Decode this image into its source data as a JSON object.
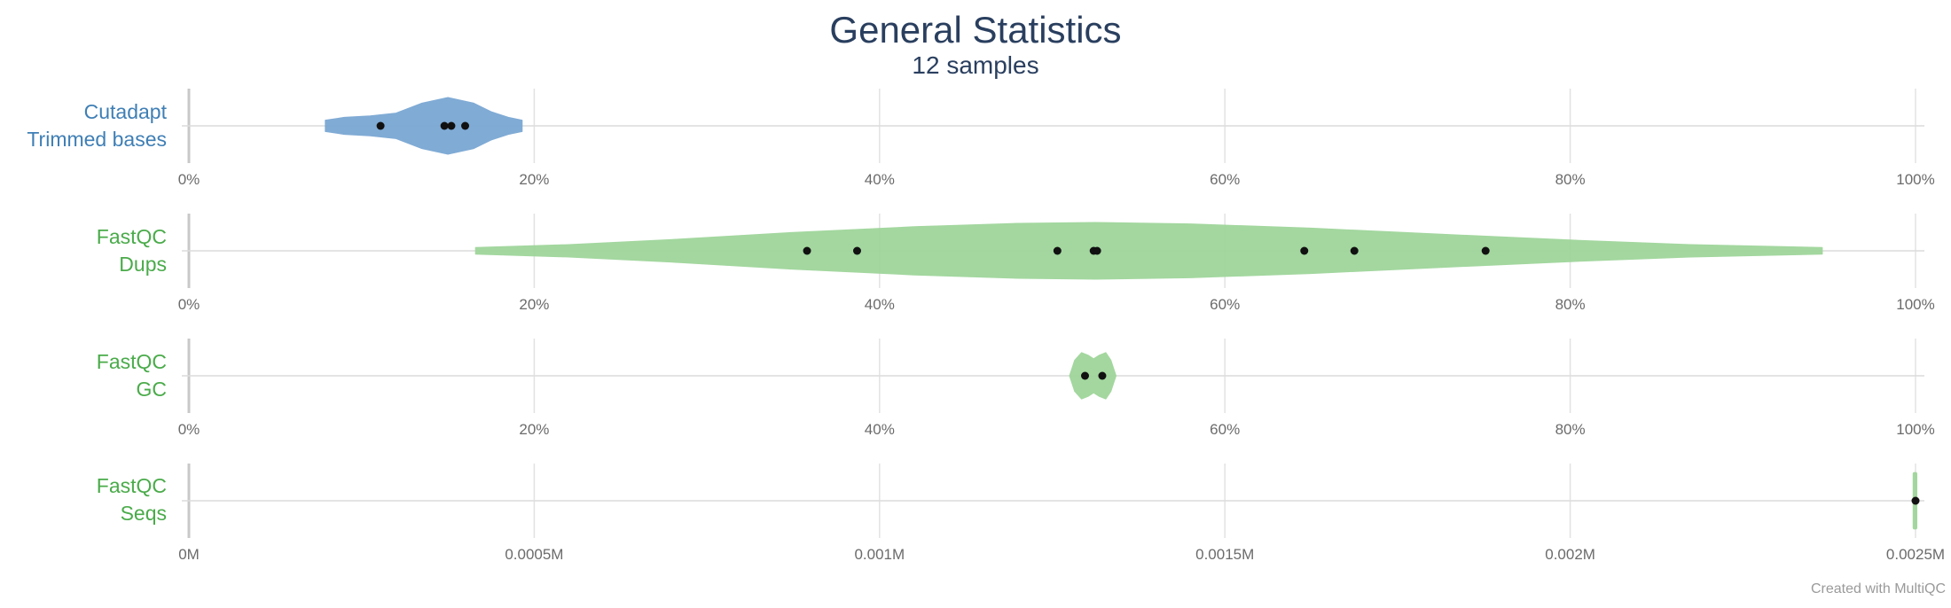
{
  "title": "General Statistics",
  "subtitle": "12 samples",
  "credit": "Created with MultiQC",
  "chart_data": {
    "type": "violin",
    "rows": [
      {
        "id": "cutadapt",
        "label_line1": "Cutadapt",
        "label_line2": "Trimmed bases",
        "color": "#7aa7d3",
        "label_color": "#3f7fb5",
        "xlim": [
          0,
          100
        ],
        "ticks": [
          "0%",
          "20%",
          "40%",
          "60%",
          "80%",
          "100%"
        ],
        "tick_values": [
          0,
          20,
          40,
          60,
          80,
          100
        ],
        "points": [
          11.1,
          14.8,
          15.2,
          16.0
        ],
        "violin": [
          [
            7.9,
            0.2
          ],
          [
            9.0,
            0.3
          ],
          [
            10.5,
            0.35
          ],
          [
            12.0,
            0.45
          ],
          [
            13.5,
            0.8
          ],
          [
            15.0,
            1.0
          ],
          [
            16.5,
            0.8
          ],
          [
            17.5,
            0.5
          ],
          [
            18.5,
            0.3
          ],
          [
            19.3,
            0.2
          ]
        ]
      },
      {
        "id": "fastqc_dups",
        "label_line1": "FastQC",
        "label_line2": "Dups",
        "color": "#9fd59a",
        "label_color": "#4aab4a",
        "xlim": [
          0,
          100
        ],
        "ticks": [
          "0%",
          "20%",
          "40%",
          "60%",
          "80%",
          "100%"
        ],
        "tick_values": [
          0,
          20,
          40,
          60,
          80,
          100
        ],
        "points": [
          35.8,
          38.7,
          50.3,
          52.4,
          52.6,
          64.6,
          67.5,
          75.1
        ],
        "violin": [
          [
            16.6,
            0.12
          ],
          [
            22.0,
            0.22
          ],
          [
            28.0,
            0.4
          ],
          [
            35.0,
            0.65
          ],
          [
            42.0,
            0.85
          ],
          [
            48.0,
            0.97
          ],
          [
            52.5,
            1.0
          ],
          [
            58.0,
            0.95
          ],
          [
            65.0,
            0.8
          ],
          [
            72.0,
            0.6
          ],
          [
            80.0,
            0.38
          ],
          [
            87.0,
            0.22
          ],
          [
            94.6,
            0.12
          ]
        ]
      },
      {
        "id": "fastqc_gc",
        "label_line1": "FastQC",
        "label_line2": "GC",
        "color": "#9fd59a",
        "label_color": "#4aab4a",
        "xlim": [
          0,
          100
        ],
        "ticks": [
          "0%",
          "20%",
          "40%",
          "60%",
          "80%",
          "100%"
        ],
        "tick_values": [
          0,
          20,
          40,
          60,
          80,
          100
        ],
        "points": [
          51.9,
          52.9
        ],
        "violin": [
          [
            51.0,
            0.0
          ],
          [
            51.3,
            0.55
          ],
          [
            51.7,
            0.82
          ],
          [
            52.1,
            0.72
          ],
          [
            52.4,
            0.6
          ],
          [
            52.7,
            0.72
          ],
          [
            53.1,
            0.82
          ],
          [
            53.4,
            0.55
          ],
          [
            53.7,
            0.0
          ]
        ]
      },
      {
        "id": "fastqc_seqs",
        "label_line1": "FastQC",
        "label_line2": "Seqs",
        "color": "#9fd59a",
        "label_color": "#4aab4a",
        "xlim": [
          0,
          0.0025
        ],
        "ticks": [
          "0M",
          "0.0005M",
          "0.001M",
          "0.0015M",
          "0.002M",
          "0.0025M"
        ],
        "tick_values": [
          0,
          0.0005,
          0.001,
          0.0015,
          0.002,
          0.0025
        ],
        "points": [
          0.0025
        ],
        "violin": [
          [
            0.0024985,
            0.95
          ],
          [
            0.0025,
            0.95
          ]
        ]
      }
    ]
  }
}
